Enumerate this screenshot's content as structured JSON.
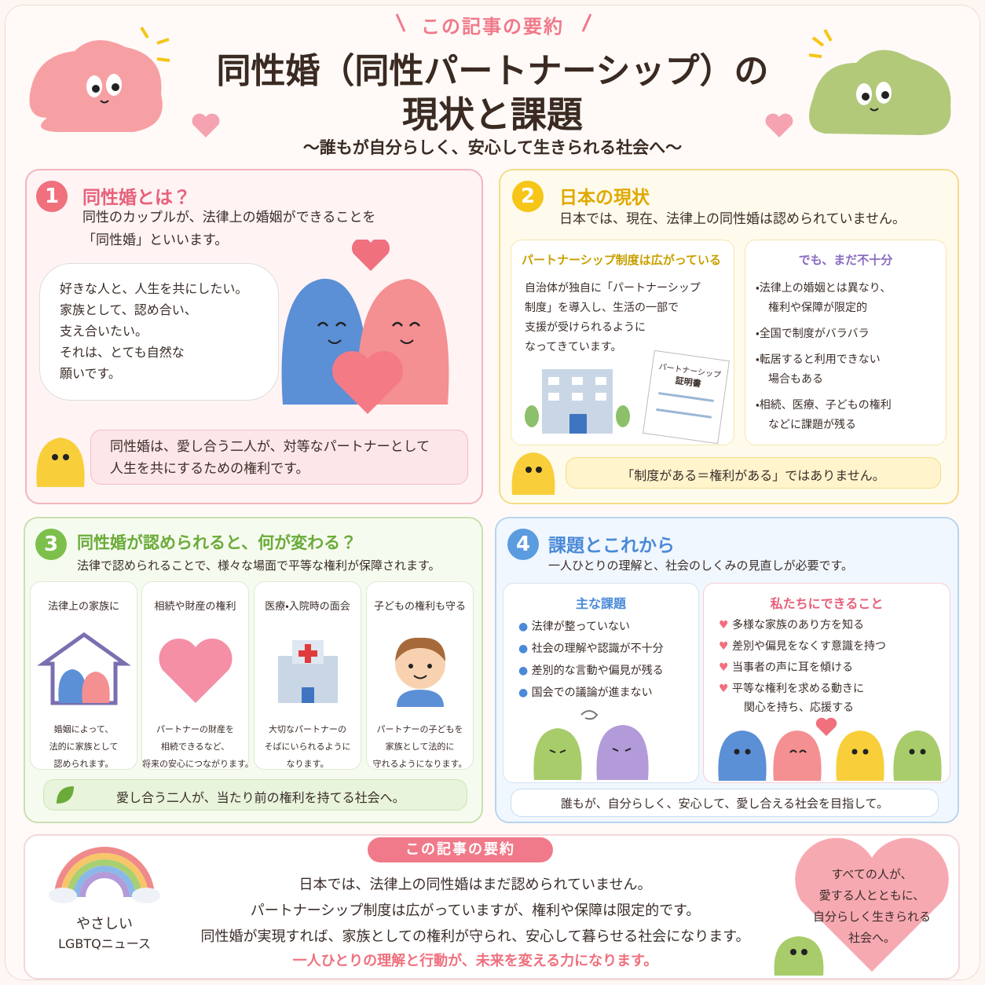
{
  "header": {
    "badge": "この記事の要約",
    "title_lines": [
      "同性婚（同性パートナーシップ）の",
      "現状と課題"
    ],
    "subtitle": "〜誰もが自分らしく、安心して生きられる社会へ〜"
  },
  "section1": {
    "number": "1",
    "heading": "同性婚とは？",
    "lead": [
      "同性のカップルが、法律上の婚姻ができることを",
      "「同性婚」といいます。"
    ],
    "speech": [
      "好きな人と、人生を共にしたい。",
      "家族として、認め合い、",
      "支え合いたい。",
      "それは、とても自然な",
      "願いです。"
    ],
    "note": [
      "同性婚は、愛し合う二人が、対等なパートナーとして",
      "人生を共にするための権利です。"
    ]
  },
  "section2": {
    "number": "2",
    "heading": "日本の現状",
    "lead": "日本では、現在、法律上の同性婚は認められていません。",
    "box_a": {
      "title": "パートナーシップ制度は広がっている",
      "body": [
        "自治体が独自に「パートナーシップ",
        "制度」を導入し、生活の一部で",
        "支援が受けられるように",
        "なってきています。"
      ],
      "document": [
        "パートナーシップ",
        "証明書"
      ]
    },
    "box_b": {
      "title": "でも、まだ不十分",
      "items": [
        [
          "法律上の婚姻とは異なり、",
          "権利や保障が限定的"
        ],
        [
          "全国で制度がバラバラ"
        ],
        [
          "転居すると利用できない",
          "場合もある"
        ],
        [
          "相続、医療、子どもの権利",
          "などに課題が残る"
        ]
      ]
    },
    "note": "「制度がある＝権利がある」ではありません。"
  },
  "section3": {
    "number": "3",
    "heading": "同性婚が認められると、何が変わる？",
    "lead": "法律で認められることで、様々な場面で平等な権利が保障されます。",
    "cards": [
      {
        "title": "法律上の家族に",
        "body": [
          "婚姻によって、",
          "法的に家族として",
          "認められます。"
        ]
      },
      {
        "title": "相続や財産の権利",
        "body": [
          "パートナーの財産を",
          "相続できるなど、",
          "将来の安心につながります。"
        ]
      },
      {
        "title": "医療・入院時の面会",
        "body": [
          "大切なパートナーの",
          "そばにいられるように",
          "なります。"
        ]
      },
      {
        "title": "子どもの権利も守る",
        "body": [
          "パートナーの子どもを",
          "家族として法的に",
          "守れるようになります。"
        ]
      }
    ],
    "note": "愛し合う二人が、当たり前の権利を持てる社会へ。"
  },
  "section4": {
    "number": "4",
    "heading": "課題とこれから",
    "lead": "一人ひとりの理解と、社会のしくみの見直しが必要です。",
    "box_a": {
      "title": "主な課題",
      "items": [
        "法律が整っていない",
        "社会の理解や認識が不十分",
        "差別的な言動や偏見が残る",
        "国会での議論が進まない"
      ]
    },
    "box_b": {
      "title": "私たちにできること",
      "items": [
        [
          "多様な家族のあり方を知る"
        ],
        [
          "差別や偏見をなくす意識を持つ"
        ],
        [
          "当事者の声に耳を傾ける"
        ],
        [
          "平等な権利を求める動きに",
          "関心を持ち、応援する"
        ]
      ]
    },
    "note": "誰もが、自分らしく、安心して、愛し合える社会を目指して。"
  },
  "footer": {
    "badge": "この記事の要約",
    "lines": [
      "日本では、法律上の同性婚はまだ認められていません。",
      "パートナーシップ制度は広がっていますが、権利や保障は限定的です。",
      "同性婚が実現すれば、家族としての権利が守られ、安心して暮らせる社会になります。",
      "一人ひとりの理解と行動が、未来を変える力になります。"
    ],
    "logo": [
      "やさしい",
      "LGBTQニュース"
    ],
    "heart": [
      "すべての人が、",
      "愛する人とともに、",
      "自分らしく生きられる",
      "社会へ。"
    ]
  }
}
